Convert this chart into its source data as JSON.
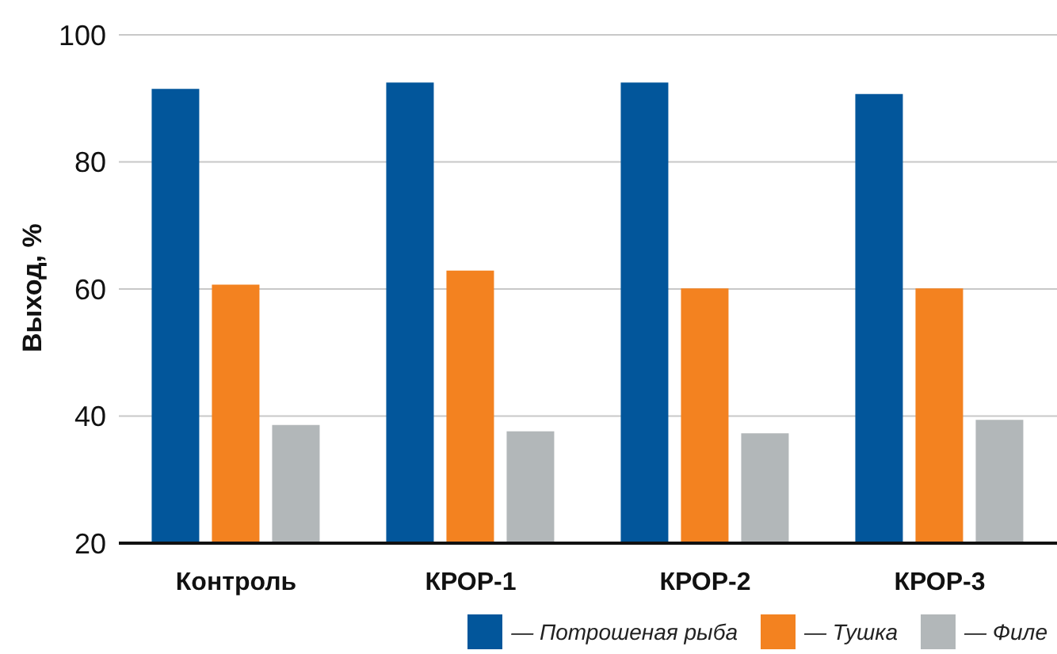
{
  "chart_data": {
    "type": "bar",
    "ylabel": "Выход, %",
    "categories": [
      "Контроль",
      "КРОР-1",
      "КРОР-2",
      "КРОР-3"
    ],
    "series": [
      {
        "name": "— Потрошеная рыба",
        "color": "#02569b",
        "values": [
          91.5,
          92.5,
          92.5,
          90.7
        ]
      },
      {
        "name": "— Тушка",
        "color": "#f38220",
        "values": [
          60.7,
          62.9,
          60.1,
          60.1
        ]
      },
      {
        "name": "— Филе",
        "color": "#b2b7b9",
        "values": [
          38.6,
          37.6,
          37.3,
          39.4
        ]
      }
    ],
    "ylim": [
      20,
      100
    ],
    "yticks": [
      20,
      40,
      60,
      80,
      100
    ],
    "grid": "y",
    "legend": "bottom"
  }
}
